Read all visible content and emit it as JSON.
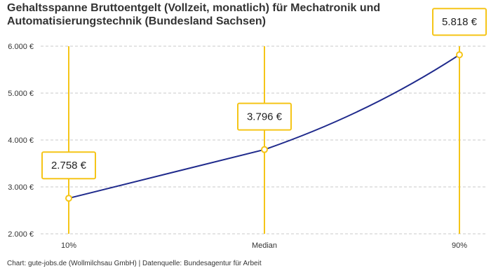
{
  "title_line1": "Gehaltsspanne Bruttoentgelt (Vollzeit, monatlich) für Mechatronik und",
  "title_line2": "Automatisierungstechnik (Bundesland Sachsen)",
  "footer": "Chart: gute-jobs.de (Wollmilchsau GmbH) | Datenquelle: Bundesagentur für Arbeit",
  "colors": {
    "line": "#1f2a8c",
    "accent": "#f5c518",
    "grid": "#c8c8c8"
  },
  "chart_data": {
    "type": "line",
    "title": "Gehaltsspanne Bruttoentgelt (Vollzeit, monatlich) für Mechatronik und Automatisierungstechnik (Bundesland Sachsen)",
    "categories": [
      "10%",
      "Median",
      "90%"
    ],
    "values": [
      2758,
      3796,
      5818
    ],
    "data_labels": [
      "2.758 €",
      "3.796 €",
      "5.818 €"
    ],
    "y_ticks": [
      2000,
      3000,
      4000,
      5000,
      6000
    ],
    "y_tick_labels": [
      "2.000 €",
      "3.000 €",
      "4.000 €",
      "5.000 €",
      "6.000 €"
    ],
    "ylim": [
      2000,
      6000
    ],
    "grid": "horizontal dashed",
    "xlabel": "",
    "ylabel": ""
  }
}
